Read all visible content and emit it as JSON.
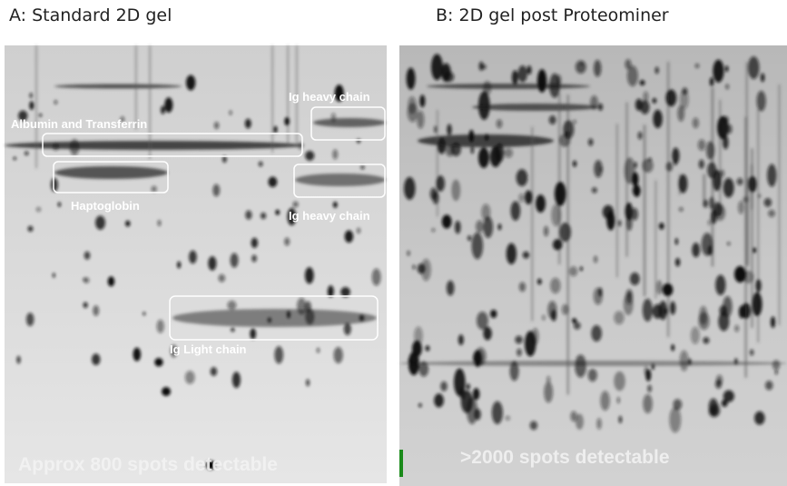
{
  "panels": [
    {
      "title": "A: Standard 2D gel",
      "annotations": [
        "Ig heavy chain",
        "Albumin and Transferrin",
        "Haptoglobin",
        "Ig heavy chain",
        "Ig Light chain"
      ],
      "footer": "Approx 800 spots detectable"
    },
    {
      "title": "B: 2D gel post Proteominer",
      "footer": ">2000 spots detectable"
    }
  ]
}
